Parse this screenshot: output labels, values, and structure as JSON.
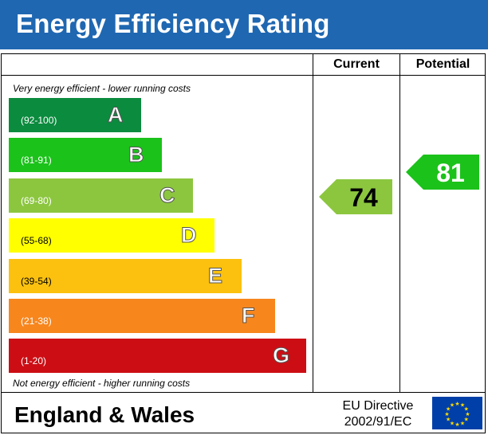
{
  "header": {
    "title": "Energy Efficiency Rating"
  },
  "columns": {
    "current_label": "Current",
    "potential_label": "Potential"
  },
  "notes": {
    "top": "Very energy efficient - lower running costs",
    "bottom": "Not energy efficient - higher running costs"
  },
  "chart_data": {
    "type": "bar",
    "title": "Energy Efficiency Rating",
    "categories": [
      "A",
      "B",
      "C",
      "D",
      "E",
      "F",
      "G"
    ],
    "bands": [
      {
        "letter": "A",
        "range": "(92-100)",
        "color": "#0b8b3e",
        "range_color": "#ffffff"
      },
      {
        "letter": "B",
        "range": "(81-91)",
        "color": "#1bc21a",
        "range_color": "#ffffff"
      },
      {
        "letter": "C",
        "range": "(69-80)",
        "color": "#8cc63f",
        "range_color": "#ffffff"
      },
      {
        "letter": "D",
        "range": "(55-68)",
        "color": "#ffff00",
        "range_color": "#000000"
      },
      {
        "letter": "E",
        "range": "(39-54)",
        "color": "#fcc10e",
        "range_color": "#000000"
      },
      {
        "letter": "F",
        "range": "(21-38)",
        "color": "#f7861d",
        "range_color": "#ffffff"
      },
      {
        "letter": "G",
        "range": "(1-20)",
        "color": "#cc0e14",
        "range_color": "#ffffff"
      }
    ],
    "current": {
      "value": 74,
      "band": "C",
      "color": "#8cc63f",
      "text_color": "#000000"
    },
    "potential": {
      "value": 81,
      "band": "B",
      "color": "#1bc21a",
      "text_color": "#ffffff"
    }
  },
  "footer": {
    "region": "England & Wales",
    "directive_line1": "EU Directive",
    "directive_line2": "2002/91/EC"
  }
}
